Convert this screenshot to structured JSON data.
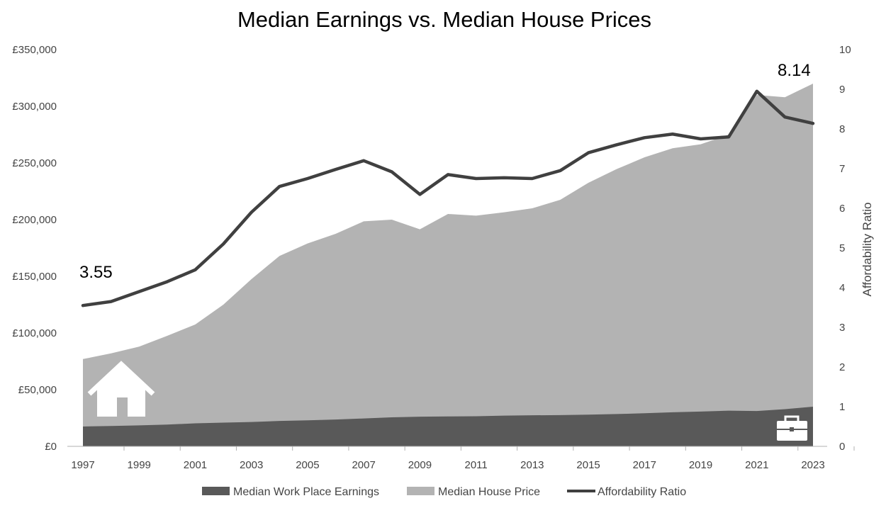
{
  "chart_data": {
    "type": "area",
    "title": "Median Earnings vs. Median House Prices",
    "xlabel": "",
    "ylabel_left": "",
    "ylabel_right": "Affordability Ratio",
    "ylim_left": [
      0,
      350000
    ],
    "ylim_right": [
      0,
      10
    ],
    "x": [
      1997,
      1998,
      1999,
      2000,
      2001,
      2002,
      2003,
      2004,
      2005,
      2006,
      2007,
      2008,
      2009,
      2010,
      2011,
      2012,
      2013,
      2014,
      2015,
      2016,
      2017,
      2018,
      2019,
      2020,
      2021,
      2022,
      2023
    ],
    "x_tick_labels": [
      "1997",
      "1999",
      "2001",
      "2003",
      "2005",
      "2007",
      "2009",
      "2011",
      "2013",
      "2015",
      "2017",
      "2019",
      "2021",
      "2023"
    ],
    "y_left_tick_labels": [
      "£0",
      "£50,000",
      "£100,000",
      "£150,000",
      "£200,000",
      "£250,000",
      "£300,000",
      "£350,000"
    ],
    "y_left_tick_values": [
      0,
      50000,
      100000,
      150000,
      200000,
      250000,
      300000,
      350000
    ],
    "y_right_tick_labels": [
      "0",
      "1",
      "2",
      "3",
      "4",
      "5",
      "6",
      "7",
      "8",
      "9",
      "10"
    ],
    "y_right_tick_values": [
      0,
      1,
      2,
      3,
      4,
      5,
      6,
      7,
      8,
      9,
      10
    ],
    "series": [
      {
        "name": "Median Work Place Earnings",
        "type": "area",
        "axis": "left",
        "color": "#595959",
        "values": [
          17500,
          18000,
          18500,
          19200,
          20300,
          20900,
          21500,
          22400,
          23000,
          23700,
          24600,
          25600,
          26200,
          26400,
          26600,
          27100,
          27400,
          27600,
          28000,
          28500,
          29200,
          30100,
          30700,
          31500,
          31200,
          32800,
          35000
        ]
      },
      {
        "name": "Median House Price",
        "type": "area",
        "axis": "left",
        "color": "#b3b3b3",
        "values": [
          77000,
          82000,
          88000,
          97500,
          107500,
          125000,
          147500,
          168000,
          179000,
          187500,
          198500,
          200000,
          191500,
          205000,
          203500,
          206500,
          210000,
          217500,
          232500,
          244500,
          255000,
          263000,
          266500,
          275000,
          310000,
          308000,
          320000
        ]
      },
      {
        "name": "Affordability Ratio",
        "type": "line",
        "axis": "right",
        "color": "#404040",
        "values": [
          3.55,
          3.65,
          3.9,
          4.15,
          4.45,
          5.1,
          5.9,
          6.55,
          6.75,
          6.98,
          7.2,
          6.92,
          6.35,
          6.85,
          6.75,
          6.77,
          6.75,
          6.95,
          7.4,
          7.6,
          7.78,
          7.87,
          7.75,
          7.8,
          8.95,
          8.3,
          8.14
        ]
      }
    ],
    "annotations": [
      {
        "text": "3.55",
        "year": 1997
      },
      {
        "text": "8.14",
        "year": 2023
      }
    ],
    "legend_position": "bottom",
    "grid": false,
    "icons": [
      "house-icon",
      "briefcase-icon"
    ]
  }
}
